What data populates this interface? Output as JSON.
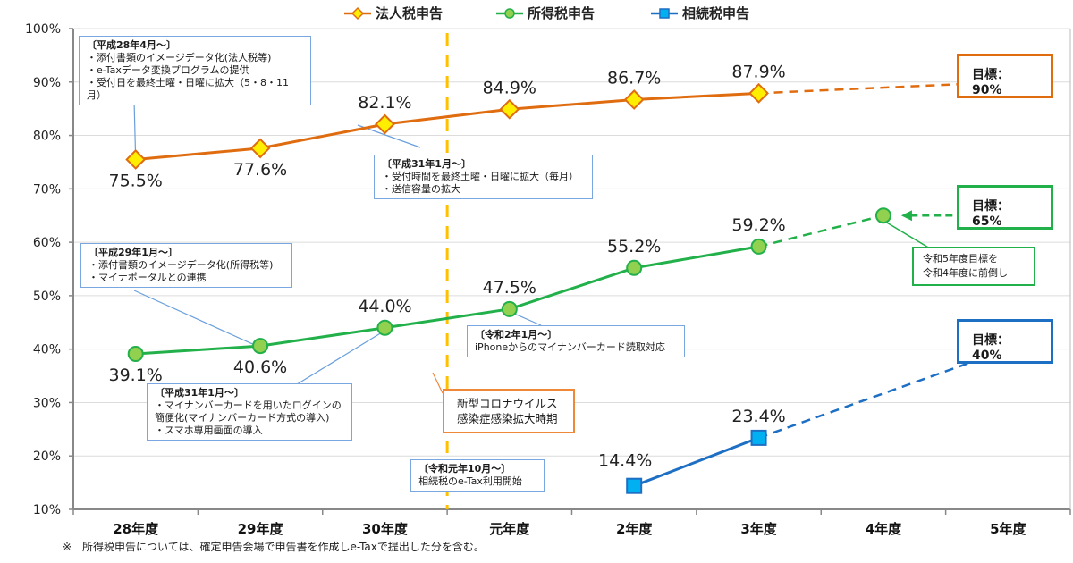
{
  "chart_data": {
    "type": "line",
    "title": "",
    "xlabel": "",
    "ylabel": "",
    "categories": [
      "28年度",
      "29年度",
      "30年度",
      "元年度",
      "2年度",
      "3年度",
      "4年度",
      "5年度"
    ],
    "ylim": [
      10,
      100
    ],
    "yticks": [
      "10%",
      "20%",
      "30%",
      "40%",
      "50%",
      "60%",
      "70%",
      "80%",
      "90%",
      "100%"
    ],
    "grid": true,
    "legend_position": "top-center",
    "series": [
      {
        "name": "法人税申告",
        "color": "#e06c10",
        "marker": "diamond",
        "marker_fill": "#ffee00",
        "values": [
          75.5,
          77.6,
          82.1,
          84.9,
          86.7,
          87.9,
          null,
          null
        ],
        "labels": [
          "75.5%",
          "77.6%",
          "82.1%",
          "84.9%",
          "86.7%",
          "87.9%",
          "",
          ""
        ],
        "target": {
          "from_index": 5,
          "to_index": 7,
          "value": 90,
          "label": "目標：90%"
        }
      },
      {
        "name": "所得税申告",
        "color": "#22b04a",
        "marker": "circle",
        "marker_fill": "#92d050",
        "values": [
          39.1,
          40.6,
          44.0,
          47.5,
          55.2,
          59.2,
          null,
          null
        ],
        "labels": [
          "39.1%",
          "40.6%",
          "44.0%",
          "47.5%",
          "55.2%",
          "59.2%",
          "",
          ""
        ],
        "target": {
          "from_index": 5,
          "to_index": 6,
          "value": 65,
          "extra_index": 7,
          "label": "目標：65%"
        }
      },
      {
        "name": "相続税申告",
        "color": "#1d6fc4",
        "marker": "square",
        "marker_fill": "#00b0f0",
        "values": [
          null,
          null,
          null,
          null,
          14.4,
          23.4,
          null,
          null
        ],
        "labels": [
          "",
          "",
          "",
          "",
          "14.4%",
          "23.4%",
          "",
          ""
        ],
        "target": {
          "from_index": 5,
          "to_index": 7,
          "value": 40,
          "label": "目標：40%"
        }
      }
    ],
    "annotations": {
      "covid_line_between": [
        "30年度",
        "元年度"
      ],
      "notes": [
        {
          "head": "〔平成28年4月～〕",
          "lines": [
            "・添付書類のイメージデータ化(法人税等)",
            "・e-Taxデータ変換プログラムの提供",
            "・受付日を最終土曜・日曜に拡大（5・8・11月）"
          ]
        },
        {
          "head": "〔平成31年1月～〕",
          "lines": [
            "・受付時間を最終土曜・日曜に拡大（毎月）",
            "・送信容量の拡大"
          ]
        },
        {
          "head": "〔平成29年1月～〕",
          "lines": [
            "・添付書類のイメージデータ化(所得税等)",
            "・マイナポータルとの連携"
          ]
        },
        {
          "head": "〔平成31年1月～〕",
          "lines": [
            "・マイナンバーカードを用いたログインの",
            "簡便化(マイナンバーカード方式の導入)",
            "・スマホ専用画面の導入"
          ]
        },
        {
          "head": "〔令和2年1月～〕",
          "lines": [
            "iPhoneからのマイナンバーカード読取対応"
          ]
        },
        {
          "head": "〔令和元年10月～〕",
          "lines": [
            "相続税のe-Tax利用開始"
          ]
        }
      ],
      "covid": [
        "新型コロナウイルス",
        "感染症感染拡大時期"
      ],
      "advance": [
        "令和5年度目標を",
        "令和4年度に前倒し"
      ]
    }
  },
  "footnote": "※　所得税申告については、確定申告会場で申告書を作成しe-Taxで提出した分を含む。"
}
